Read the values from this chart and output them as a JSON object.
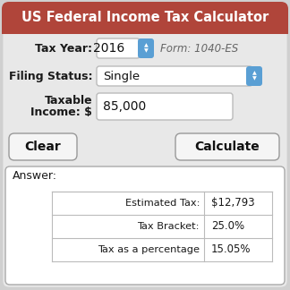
{
  "title": "US Federal Income Tax Calculator",
  "title_bg": "#b0453a",
  "title_color": "#ffffff",
  "outer_bg": "#d0d0d0",
  "inner_bg": "#e8e8e8",
  "tax_year_label": "Tax Year:",
  "tax_year_value": "2016",
  "form_label": "Form: 1040-ES",
  "filing_status_label": "Filing Status:",
  "filing_status_value": "Single",
  "taxable_line1": "Taxable",
  "taxable_line2": "Income: $",
  "taxable_income_value": "85,000",
  "btn_clear": "Clear",
  "btn_calculate": "Calculate",
  "answer_label": "Answer:",
  "table_rows": [
    [
      "Estimated Tax:",
      "$12,793"
    ],
    [
      "Tax Bracket:",
      "25.0%"
    ],
    [
      "Tax as a percentage",
      "15.05%"
    ]
  ],
  "input_bg": "#ffffff",
  "input_border": "#bbbbbb",
  "btn_bg": "#f5f5f5",
  "btn_border": "#999999",
  "answer_border": "#aaaaaa",
  "answer_bg": "#ffffff",
  "dropdown_btn_color": "#5a9fd4",
  "table_line_color": "#bbbbbb",
  "label_color": "#1a1a1a",
  "form_color": "#666666"
}
